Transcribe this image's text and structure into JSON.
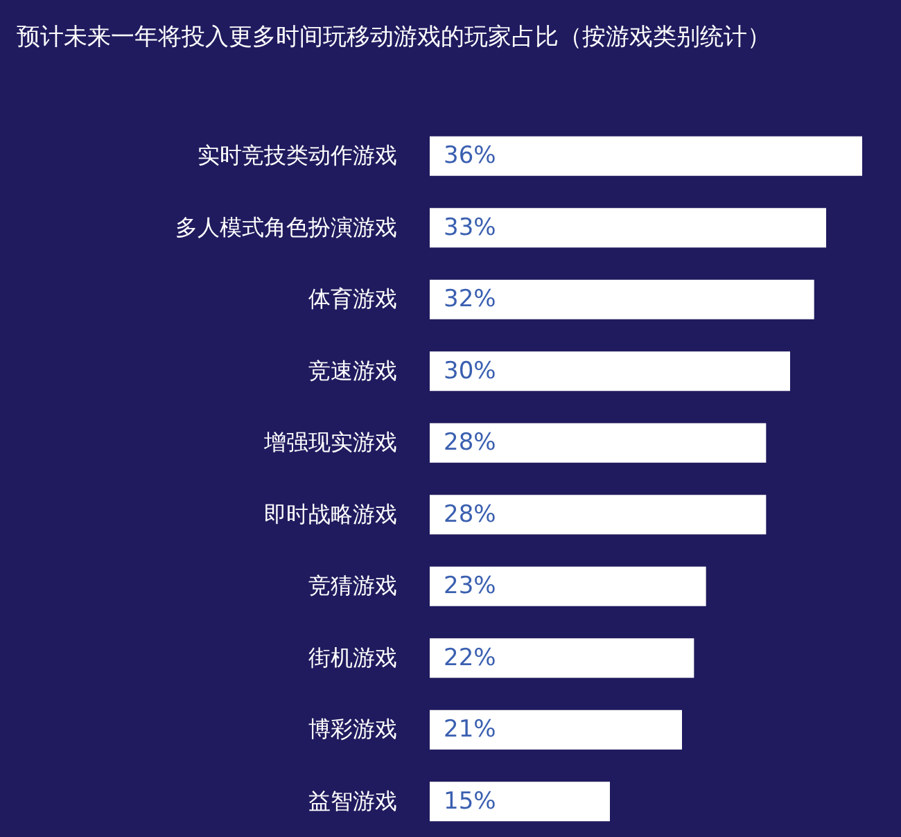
{
  "chart_data": {
    "type": "bar",
    "orientation": "horizontal",
    "title": "预计未来一年将投入更多时间玩移动游戏的玩家占比（按游戏类别统计）",
    "categories": [
      "实时竞技类动作游戏",
      "多人模式角色扮演游戏",
      "体育游戏",
      "竞速游戏",
      "增强现实游戏",
      "即时战略游戏",
      "竞猜游戏",
      "街机游戏",
      "博彩游戏",
      "益智游戏"
    ],
    "values": [
      36,
      33,
      32,
      30,
      28,
      28,
      23,
      22,
      21,
      15
    ],
    "value_labels": [
      "36%",
      "33%",
      "32%",
      "30%",
      "28%",
      "28%",
      "23%",
      "22%",
      "21%",
      "15%"
    ],
    "color": "#ffffff"
  }
}
